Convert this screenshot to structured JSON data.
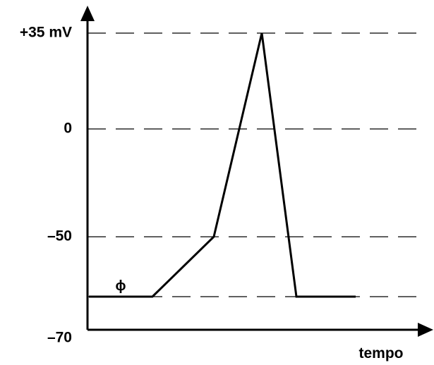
{
  "chart_data": {
    "type": "line",
    "title": "",
    "xlabel": "tempo",
    "ylabel": "",
    "yticks": [
      {
        "value": 35,
        "label": "+35 mV"
      },
      {
        "value": 0,
        "label": "0"
      },
      {
        "value": -50,
        "label": "–50"
      },
      {
        "value": -70,
        "label": "–70"
      }
    ],
    "reference_lines": [
      35,
      0,
      -50,
      -75
    ],
    "reference_line_style": "dashed",
    "series": [
      {
        "x": [
          0,
          1.05,
          2.1,
          2.95,
          3.8,
          4.8
        ],
        "y": [
          -75,
          -75,
          -50,
          35,
          -75,
          -75
        ]
      }
    ],
    "annotations": [
      {
        "text": "ϕ",
        "x": 0.5,
        "y": -75
      }
    ],
    "colors": {
      "axis": "#000000",
      "line": "#000000",
      "dash": "#000000"
    }
  }
}
